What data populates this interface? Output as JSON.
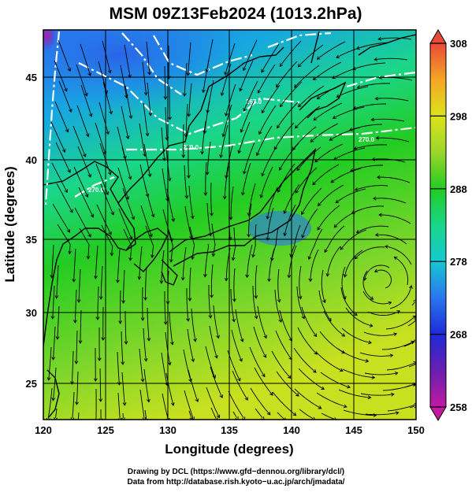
{
  "title": "MSM 09Z13Feb2024 (1013.2hPa)",
  "map": {
    "xlabel": "Longitude (degrees)",
    "ylabel": "Latitude  (degrees)",
    "lon_range": [
      120,
      150
    ],
    "lat_range": [
      22.4,
      47.6
    ],
    "lon_ticks": [
      "120",
      "125",
      "130",
      "135",
      "140",
      "145",
      "150"
    ],
    "lat_ticks": [
      "25",
      "30",
      "35",
      "40",
      "45"
    ],
    "grid": true,
    "field": "temperature (K) with streamlines",
    "contour_labels": [
      "267.0",
      "270.0",
      "270.0",
      "270.0"
    ]
  },
  "colorbar": {
    "min": 258,
    "max": 308,
    "ticks": [
      "258",
      "268",
      "278",
      "288",
      "298",
      "308"
    ],
    "orientation": "vertical",
    "colors": {
      "c258": "#c21aa3",
      "c263": "#6a1fb0",
      "c268": "#1c2ad8",
      "c273": "#2a76ee",
      "c278": "#16c8d0",
      "c283": "#1ad68a",
      "c288": "#22cc22",
      "c293": "#9ad62a",
      "c298": "#dce41a",
      "c303": "#f5a623",
      "c308": "#e84a3a"
    }
  },
  "credits": {
    "line1": "Drawing by DCL (https://www.gfd−dennou.org/library/dcl/)",
    "line2": "Data from http://database.rish.kyoto−u.ac.jp/arch/jmadata/"
  }
}
